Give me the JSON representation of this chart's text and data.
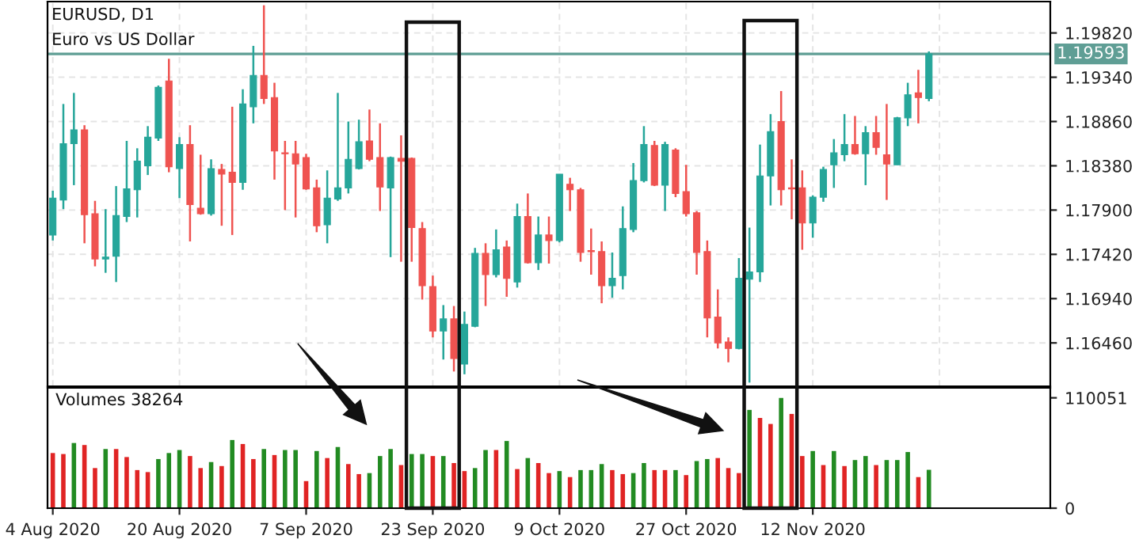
{
  "chart_data": [
    {
      "type": "candlestick",
      "title": "EURUSD, D1",
      "subtitle": "Euro vs US Dollar",
      "categories": [
        null,
        null,
        null,
        null,
        null,
        null,
        null,
        null,
        null,
        null,
        null,
        null,
        null,
        null,
        null,
        null,
        null,
        null,
        null,
        null,
        null,
        null,
        null,
        null,
        null,
        null,
        null,
        null,
        null,
        null,
        null,
        null,
        null,
        null,
        null,
        null,
        null,
        null,
        null,
        null,
        null,
        null,
        null,
        null,
        null,
        null,
        null,
        null,
        null,
        null,
        null,
        null,
        null,
        null,
        null,
        null,
        null,
        null,
        null,
        null,
        null,
        null,
        null,
        null,
        null,
        null,
        null,
        null,
        null,
        null,
        null,
        null,
        null,
        null,
        null,
        null,
        null,
        null,
        null,
        null,
        null,
        null,
        null,
        null,
        null,
        null,
        null,
        null,
        null,
        null,
        null,
        null,
        null,
        null,
        null
      ],
      "ohlc": [
        [
          1.1763,
          1.1811,
          1.1757,
          1.1803
        ],
        [
          1.1801,
          1.1905,
          1.1791,
          1.1862
        ],
        [
          1.1862,
          1.1917,
          1.1817,
          1.1877
        ],
        [
          1.1877,
          1.1882,
          1.1754,
          1.1785
        ],
        [
          1.1786,
          1.18,
          1.1729,
          1.1737
        ],
        [
          1.1737,
          1.1791,
          1.1722,
          1.1739
        ],
        [
          1.174,
          1.1816,
          1.1712,
          1.1784
        ],
        [
          1.1783,
          1.1865,
          1.1777,
          1.1813
        ],
        [
          1.1812,
          1.1857,
          1.1782,
          1.1843
        ],
        [
          1.1838,
          1.1881,
          1.1828,
          1.1869
        ],
        [
          1.1868,
          1.1925,
          1.1865,
          1.1923
        ],
        [
          1.193,
          1.1954,
          1.1831,
          1.1837
        ],
        [
          1.1835,
          1.1869,
          1.1803,
          1.1861
        ],
        [
          1.1861,
          1.1882,
          1.1756,
          1.1796
        ],
        [
          1.1792,
          1.185,
          1.1785,
          1.1786
        ],
        [
          1.1786,
          1.1845,
          1.1784,
          1.1835
        ],
        [
          1.1834,
          1.184,
          1.1773,
          1.1829
        ],
        [
          1.1831,
          1.1902,
          1.1763,
          1.182
        ],
        [
          1.182,
          1.1921,
          1.1812,
          1.1905
        ],
        [
          1.1902,
          1.1968,
          1.1884,
          1.1936
        ],
        [
          1.1936,
          1.2012,
          1.1905,
          1.1911
        ],
        [
          1.1912,
          1.1928,
          1.1823,
          1.1854
        ],
        [
          1.1852,
          1.1865,
          1.179,
          1.1851
        ],
        [
          1.1851,
          1.1865,
          1.1782,
          1.184
        ],
        [
          1.1847,
          1.1851,
          1.1812,
          1.1813
        ],
        [
          1.1814,
          1.1823,
          1.1766,
          1.1773
        ],
        [
          1.1774,
          1.1833,
          1.1754,
          1.1803
        ],
        [
          1.1802,
          1.1917,
          1.18,
          1.1814
        ],
        [
          1.1814,
          1.1886,
          1.1808,
          1.1845
        ],
        [
          1.1835,
          1.1888,
          1.1834,
          1.1864
        ],
        [
          1.1865,
          1.1899,
          1.1843,
          1.1845
        ],
        [
          1.1847,
          1.1884,
          1.1789,
          1.1815
        ],
        [
          1.1814,
          1.1848,
          1.1739,
          1.1847
        ],
        [
          1.1846,
          1.1871,
          1.1734,
          1.1843
        ],
        [
          1.1846,
          1.1847,
          1.1734,
          1.1771
        ],
        [
          1.177,
          1.1777,
          1.1693,
          1.1708
        ],
        [
          1.1707,
          1.1719,
          1.1652,
          1.1659
        ],
        [
          1.1659,
          1.1687,
          1.1628,
          1.1672
        ],
        [
          1.1672,
          1.1686,
          1.1615,
          1.1629
        ],
        [
          1.1623,
          1.168,
          1.1612,
          1.1666
        ],
        [
          1.1664,
          1.1749,
          1.1663,
          1.1743
        ],
        [
          1.1743,
          1.1754,
          1.1686,
          1.172
        ],
        [
          1.172,
          1.1769,
          1.1717,
          1.1747
        ],
        [
          1.175,
          1.1757,
          1.1696,
          1.1716
        ],
        [
          1.1712,
          1.1797,
          1.1706,
          1.1783
        ],
        [
          1.1783,
          1.1808,
          1.1732,
          1.1733
        ],
        [
          1.1733,
          1.1783,
          1.1725,
          1.1763
        ],
        [
          1.1763,
          1.1783,
          1.1732,
          1.1757
        ],
        [
          1.1757,
          1.1829,
          1.1755,
          1.1829
        ],
        [
          1.1818,
          1.1825,
          1.1789,
          1.1812
        ],
        [
          1.1812,
          1.1814,
          1.1734,
          1.1744
        ],
        [
          1.1746,
          1.177,
          1.172,
          1.1745
        ],
        [
          1.1745,
          1.1756,
          1.1689,
          1.1708
        ],
        [
          1.1708,
          1.1744,
          1.1695,
          1.1716
        ],
        [
          1.1719,
          1.1794,
          1.1704,
          1.177
        ],
        [
          1.1769,
          1.1841,
          1.1766,
          1.1822
        ],
        [
          1.1822,
          1.1881,
          1.182,
          1.1861
        ],
        [
          1.186,
          1.1865,
          1.1816,
          1.1817
        ],
        [
          1.1817,
          1.1864,
          1.1789,
          1.1861
        ],
        [
          1.1855,
          1.1857,
          1.1804,
          1.1808
        ],
        [
          1.181,
          1.1839,
          1.1783,
          1.1786
        ],
        [
          1.1787,
          1.1789,
          1.172,
          1.1744
        ],
        [
          1.1745,
          1.1757,
          1.1652,
          1.1673
        ],
        [
          1.1674,
          1.1704,
          1.164,
          1.1646
        ],
        [
          1.1647,
          1.1652,
          1.1625,
          1.164
        ],
        [
          1.164,
          1.1738,
          1.1639,
          1.1716
        ],
        [
          1.1715,
          1.1771,
          1.1603,
          1.1723
        ],
        [
          1.1723,
          1.1861,
          1.1712,
          1.1827
        ],
        [
          1.1827,
          1.1894,
          1.1795,
          1.1875
        ],
        [
          1.1886,
          1.1919,
          1.1795,
          1.1812
        ],
        [
          1.1814,
          1.1845,
          1.178,
          1.1813
        ],
        [
          1.1814,
          1.1833,
          1.1747,
          1.1776
        ],
        [
          1.1776,
          1.1806,
          1.176,
          1.1804
        ],
        [
          1.1804,
          1.1837,
          1.1799,
          1.1834
        ],
        [
          1.1839,
          1.1867,
          1.1814,
          1.1852
        ],
        [
          1.185,
          1.1894,
          1.1843,
          1.1861
        ],
        [
          1.1861,
          1.1892,
          1.185,
          1.1851
        ],
        [
          1.1851,
          1.1881,
          1.1817,
          1.1874
        ],
        [
          1.1874,
          1.1892,
          1.185,
          1.1858
        ],
        [
          1.185,
          1.1905,
          1.1801,
          1.184
        ],
        [
          1.1839,
          1.1891,
          1.1839,
          1.189
        ],
        [
          1.189,
          1.1928,
          1.1881,
          1.1915
        ],
        [
          1.1917,
          1.1942,
          1.1884,
          1.1912
        ],
        [
          1.1911,
          1.1962,
          1.1908,
          1.19593
        ],
        null,
        null,
        null,
        null,
        null,
        null,
        null,
        null,
        null,
        null,
        null
      ],
      "colors": [
        "#26a69a",
        "#26a69a",
        "#26a69a",
        "#ef5350",
        "#ef5350",
        "#26a69a",
        "#26a69a",
        "#26a69a",
        "#26a69a",
        "#26a69a",
        "#26a69a",
        "#ef5350",
        "#26a69a",
        "#ef5350",
        "#ef5350",
        "#26a69a",
        "#ef5350",
        "#ef5350",
        "#26a69a",
        "#26a69a",
        "#ef5350",
        "#ef5350",
        "#ef5350",
        "#ef5350",
        "#ef5350",
        "#ef5350",
        "#26a69a",
        "#26a69a",
        "#26a69a",
        "#26a69a",
        "#ef5350",
        "#ef5350",
        "#26a69a",
        "#ef5350",
        "#ef5350",
        "#ef5350",
        "#ef5350",
        "#26a69a",
        "#ef5350",
        "#26a69a",
        "#26a69a",
        "#ef5350",
        "#26a69a",
        "#ef5350",
        "#26a69a",
        "#ef5350",
        "#26a69a",
        "#ef5350",
        "#26a69a",
        "#ef5350",
        "#ef5350",
        "#ef5350",
        "#ef5350",
        "#26a69a",
        "#26a69a",
        "#26a69a",
        "#26a69a",
        "#ef5350",
        "#26a69a",
        "#ef5350",
        "#ef5350",
        "#ef5350",
        "#ef5350",
        "#ef5350",
        "#ef5350",
        "#26a69a",
        "#26a69a",
        "#26a69a",
        "#26a69a",
        "#ef5350",
        "#ef5350",
        "#ef5350",
        "#26a69a",
        "#26a69a",
        "#26a69a",
        "#26a69a",
        "#ef5350",
        "#26a69a",
        "#ef5350",
        "#ef5350",
        "#26a69a",
        "#26a69a",
        "#ef5350",
        "#26a69a",
        null,
        null,
        null,
        null,
        null,
        null,
        null,
        null,
        null,
        null,
        null
      ],
      "ylim": [
        1.1599,
        1.2016
      ],
      "yticks": [
        {
          "value": 1.1646,
          "label": "1.16460"
        },
        {
          "value": 1.1694,
          "label": "1.16940"
        },
        {
          "value": 1.1742,
          "label": "1.17420"
        },
        {
          "value": 1.179,
          "label": "1.17900"
        },
        {
          "value": 1.1838,
          "label": "1.18380"
        },
        {
          "value": 1.1886,
          "label": "1.18860"
        },
        {
          "value": 1.1934,
          "label": "1.19340"
        },
        {
          "value": 1.1982,
          "label": "1.19820"
        }
      ],
      "grid": true,
      "tick_labels": "y",
      "ref_lines": [
        {
          "axis": "y",
          "value": 1.19593,
          "label": "1.19593",
          "color": "#5f9e95"
        }
      ]
    },
    {
      "type": "bar",
      "categories": [
        "4 Aug 2020",
        null,
        null,
        null,
        null,
        null,
        null,
        null,
        null,
        null,
        null,
        null,
        "20 Aug 2020",
        null,
        null,
        null,
        null,
        null,
        null,
        null,
        null,
        null,
        null,
        null,
        "7 Sep 2020",
        null,
        null,
        null,
        null,
        null,
        null,
        null,
        null,
        null,
        null,
        null,
        "23 Sep 2020",
        null,
        null,
        null,
        null,
        null,
        null,
        null,
        null,
        null,
        null,
        null,
        "9 Oct 2020",
        null,
        null,
        null,
        null,
        null,
        null,
        null,
        null,
        null,
        null,
        null,
        "27 Oct 2020",
        null,
        null,
        null,
        null,
        null,
        null,
        null,
        null,
        null,
        null,
        null,
        "12 Nov 2020",
        null,
        null,
        null,
        null,
        null,
        null,
        null,
        null,
        null,
        null,
        null,
        null,
        null,
        null,
        null,
        null,
        null,
        null,
        null,
        null,
        null,
        null
      ],
      "values": [
        55000,
        54000,
        65000,
        63000,
        40000,
        59000,
        59000,
        51000,
        38000,
        36000,
        49000,
        55000,
        58000,
        52000,
        40000,
        46000,
        42000,
        68000,
        64000,
        49000,
        59000,
        53000,
        58000,
        58000,
        27000,
        57000,
        50000,
        61000,
        44000,
        34000,
        35000,
        52000,
        59000,
        43000,
        54000,
        54000,
        52000,
        52000,
        45000,
        37000,
        40000,
        58000,
        58000,
        67000,
        39000,
        50000,
        45000,
        35000,
        37000,
        31000,
        38000,
        38000,
        44000,
        38000,
        34000,
        35000,
        45000,
        38000,
        38000,
        38000,
        33000,
        47000,
        49000,
        50000,
        40000,
        35000,
        98000,
        90000,
        84000,
        110000,
        94000,
        52000,
        57000,
        43000,
        57000,
        42000,
        48000,
        52000,
        43000,
        48000,
        48000,
        56000,
        31000,
        38264,
        null,
        null,
        null,
        null,
        null,
        null,
        null,
        null,
        null,
        null,
        null
      ],
      "colors": [
        "#e02424",
        "#e02424",
        "#228b22",
        "#e02424",
        "#e02424",
        "#228b22",
        "#e02424",
        "#e02424",
        "#e02424",
        "#e02424",
        "#228b22",
        "#228b22",
        "#228b22",
        "#e02424",
        "#e02424",
        "#228b22",
        "#e02424",
        "#228b22",
        "#e02424",
        "#e02424",
        "#228b22",
        "#e02424",
        "#228b22",
        "#228b22",
        "#e02424",
        "#228b22",
        "#e02424",
        "#228b22",
        "#e02424",
        "#e02424",
        "#228b22",
        "#228b22",
        "#228b22",
        "#e02424",
        "#228b22",
        "#228b22",
        "#e02424",
        "#228b22",
        "#e02424",
        "#e02424",
        "#228b22",
        "#228b22",
        "#e02424",
        "#228b22",
        "#e02424",
        "#228b22",
        "#e02424",
        "#e02424",
        "#228b22",
        "#e02424",
        "#228b22",
        "#228b22",
        "#228b22",
        "#e02424",
        "#e02424",
        "#228b22",
        "#228b22",
        "#e02424",
        "#e02424",
        "#228b22",
        "#e02424",
        "#228b22",
        "#228b22",
        "#e02424",
        "#e02424",
        "#e02424",
        "#228b22",
        "#e02424",
        "#e02424",
        "#228b22",
        "#e02424",
        "#e02424",
        "#228b22",
        "#e02424",
        "#228b22",
        "#e02424",
        "#228b22",
        "#228b22",
        "#e02424",
        "#228b22",
        "#228b22",
        "#228b22",
        "#e02424",
        "#228b22",
        null,
        null,
        null,
        null,
        null,
        null,
        null,
        null,
        null,
        null,
        null
      ],
      "ylim": [
        0,
        120000
      ],
      "yticks": [
        0,
        110051
      ],
      "annotations": [
        "Volumes 38264"
      ]
    }
  ]
}
